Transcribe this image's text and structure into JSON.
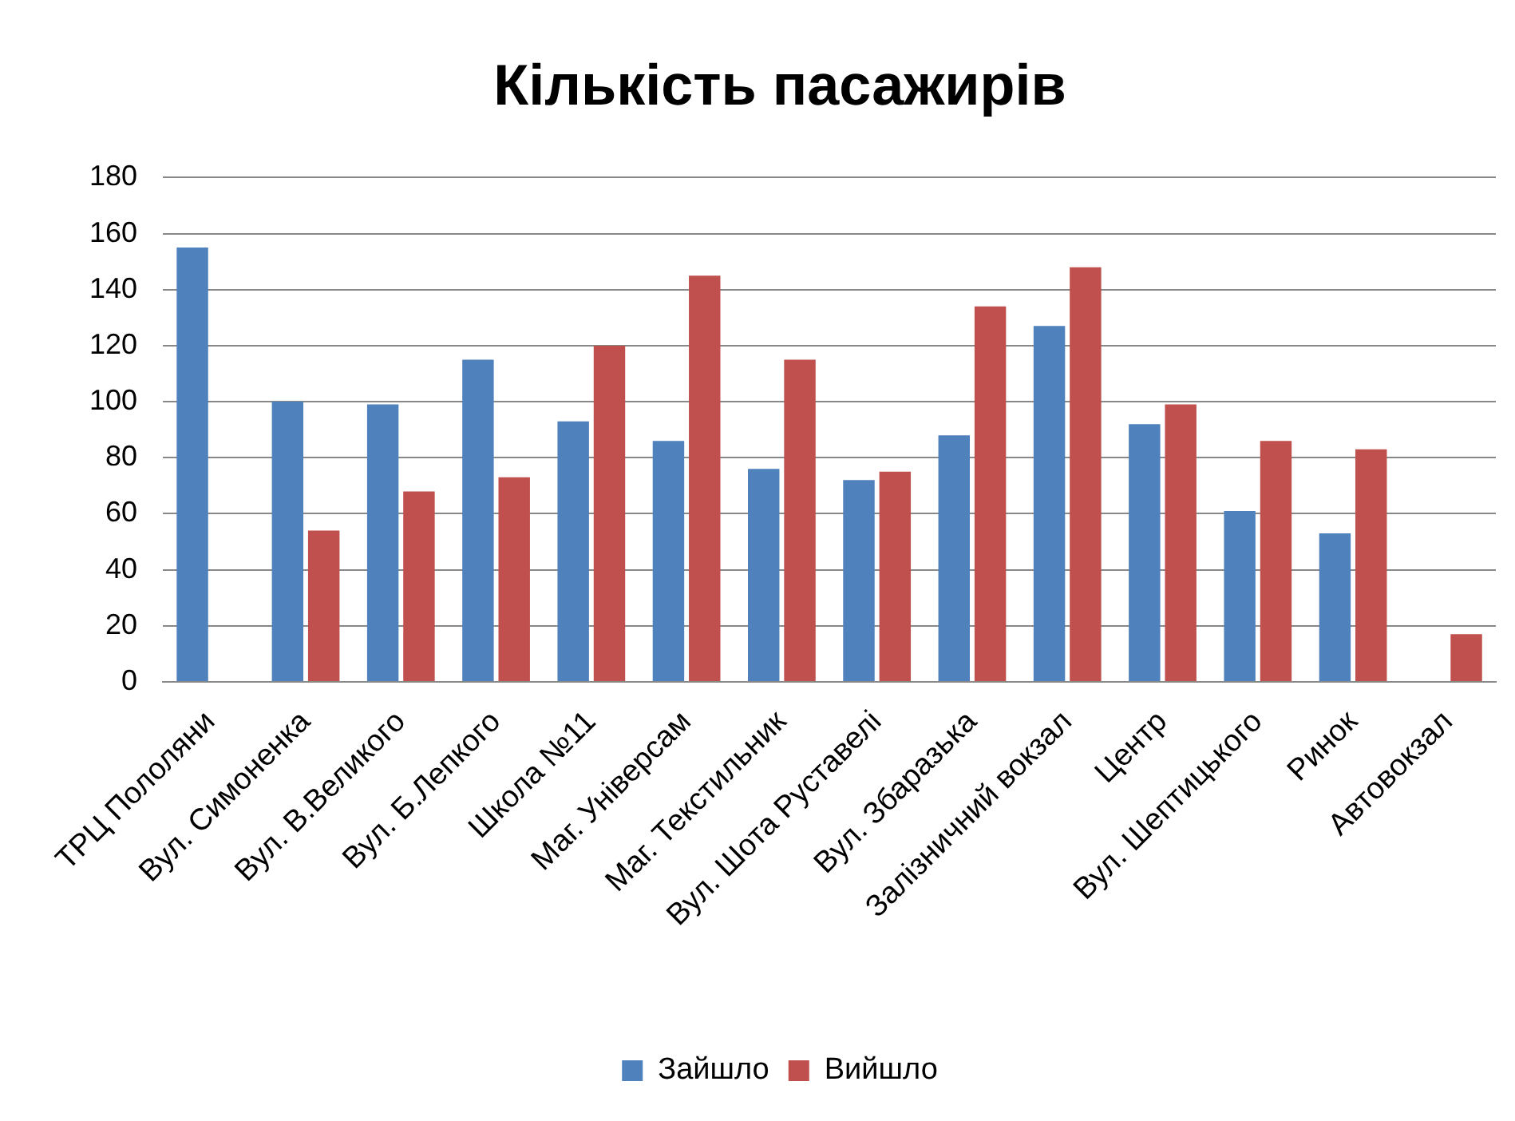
{
  "chart_data": {
    "type": "bar",
    "title": "Кількість пасажирів",
    "categories": [
      "ТРЦ Пололяни",
      "Вул. Симоненка",
      "Вул. В.Великого",
      "Вул. Б.Лепкого",
      "Школа №11",
      "Маг. Універсам",
      "Маг. Текстильник",
      "Вул. Шота Руставелі",
      "Вул. Збаразька",
      "Залізничний вокзал",
      "Центр",
      "Вул. Шептицького",
      "Ринок",
      "Автовокзал"
    ],
    "series": [
      {
        "name": "Зайшло",
        "color": "#4f81bd",
        "values": [
          155,
          100,
          99,
          115,
          93,
          86,
          76,
          72,
          88,
          127,
          92,
          61,
          53,
          null
        ]
      },
      {
        "name": "Вийшло",
        "color": "#c0504d",
        "values": [
          null,
          54,
          68,
          73,
          120,
          145,
          115,
          75,
          134,
          148,
          99,
          86,
          83,
          17
        ]
      }
    ],
    "ylim": [
      0,
      180
    ],
    "yticks": [
      0,
      20,
      40,
      60,
      80,
      100,
      120,
      140,
      160,
      180
    ],
    "grid": "y",
    "legend": "bottom"
  }
}
